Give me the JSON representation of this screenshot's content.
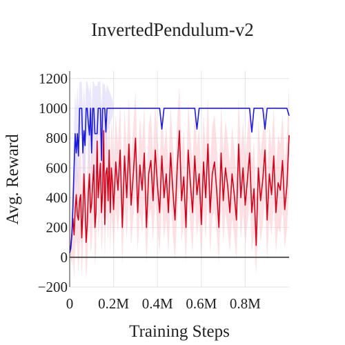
{
  "chart_data": {
    "type": "line",
    "title": "InvertedPendulum-v2",
    "xlabel": "Training Steps",
    "ylabel": "Avg. Reward",
    "xlim": [
      0,
      1000000
    ],
    "ylim": [
      -200,
      1250
    ],
    "x_ticks": [
      0,
      200000,
      400000,
      600000,
      800000
    ],
    "x_tick_labels": [
      "0",
      "0.2M",
      "0.4M",
      "0.6M",
      "0.8M"
    ],
    "y_ticks": [
      -200,
      0,
      200,
      400,
      600,
      800,
      1000,
      1200
    ],
    "y_tick_labels": [
      "−200",
      "0",
      "200",
      "400",
      "600",
      "800",
      "1000",
      "1200"
    ],
    "grid": true,
    "legend": "none",
    "series": [
      {
        "color": "#d0021b",
        "band_color": "#f9c6cc",
        "x": [
          0,
          5000,
          10000,
          15000,
          20000,
          25000,
          30000,
          35000,
          40000,
          45000,
          50000,
          55000,
          60000,
          65000,
          70000,
          75000,
          80000,
          85000,
          90000,
          95000,
          100000,
          105000,
          110000,
          115000,
          120000,
          125000,
          130000,
          135000,
          140000,
          145000,
          150000,
          155000,
          160000,
          165000,
          170000,
          175000,
          180000,
          185000,
          190000,
          195000,
          200000,
          210000,
          220000,
          230000,
          240000,
          250000,
          260000,
          270000,
          280000,
          290000,
          300000,
          310000,
          320000,
          330000,
          340000,
          350000,
          360000,
          370000,
          380000,
          390000,
          400000,
          410000,
          420000,
          430000,
          440000,
          450000,
          460000,
          470000,
          480000,
          490000,
          500000,
          510000,
          520000,
          530000,
          540000,
          550000,
          560000,
          570000,
          580000,
          590000,
          600000,
          610000,
          620000,
          630000,
          640000,
          650000,
          660000,
          670000,
          680000,
          690000,
          700000,
          710000,
          720000,
          730000,
          740000,
          750000,
          760000,
          770000,
          780000,
          790000,
          800000,
          810000,
          820000,
          830000,
          840000,
          850000,
          860000,
          870000,
          880000,
          890000,
          900000,
          910000,
          920000,
          930000,
          940000,
          950000,
          960000,
          970000,
          980000,
          990000,
          1000000
        ],
        "y": [
          30,
          80,
          160,
          260,
          150,
          320,
          420,
          280,
          250,
          380,
          420,
          130,
          300,
          560,
          350,
          100,
          220,
          430,
          560,
          300,
          360,
          500,
          620,
          200,
          300,
          780,
          400,
          520,
          630,
          300,
          450,
          850,
          220,
          560,
          600,
          380,
          720,
          300,
          600,
          500,
          320,
          640,
          450,
          720,
          200,
          680,
          400,
          760,
          350,
          560,
          800,
          300,
          620,
          450,
          700,
          200,
          560,
          650,
          380,
          720,
          480,
          300,
          680,
          400,
          560,
          300,
          700,
          450,
          250,
          600,
          850,
          380,
          540,
          200,
          720,
          500,
          300,
          680,
          420,
          560,
          220,
          640,
          400,
          760,
          300,
          560,
          640,
          450,
          200,
          700,
          380,
          600,
          480,
          300,
          560,
          420,
          250,
          760,
          400,
          600,
          350,
          520,
          700,
          300,
          460,
          80,
          600,
          380,
          520,
          720,
          250,
          560,
          420,
          680,
          300,
          500,
          450,
          650,
          320,
          480,
          820
        ],
        "band_low": [
          0,
          0,
          -60,
          20,
          -150,
          50,
          130,
          40,
          -100,
          60,
          150,
          -150,
          40,
          250,
          100,
          -150,
          -50,
          150,
          250,
          30,
          80,
          200,
          320,
          -60,
          30,
          450,
          120,
          220,
          300,
          30,
          160,
          480,
          -20,
          250,
          300,
          100,
          400,
          30,
          280,
          200,
          60,
          320,
          160,
          400,
          -50,
          360,
          120,
          420,
          80,
          260,
          450,
          40,
          300,
          160,
          380,
          -40,
          260,
          330,
          100,
          400,
          180,
          30,
          360,
          120,
          260,
          30,
          380,
          150,
          -20,
          300,
          480,
          100,
          240,
          -40,
          400,
          200,
          30,
          360,
          140,
          260,
          -20,
          320,
          120,
          420,
          30,
          260,
          320,
          160,
          -40,
          380,
          100,
          300,
          180,
          30,
          260,
          140,
          -20,
          420,
          120,
          300,
          80,
          220,
          380,
          30,
          160,
          -120,
          300,
          100,
          220,
          400,
          -20,
          260,
          140,
          360,
          30,
          200,
          160,
          330,
          60,
          180,
          480
        ],
        "band_high": [
          60,
          200,
          420,
          560,
          480,
          620,
          750,
          600,
          560,
          700,
          750,
          450,
          620,
          880,
          680,
          420,
          540,
          760,
          880,
          620,
          700,
          820,
          950,
          520,
          640,
          1100,
          720,
          840,
          950,
          620,
          780,
          1150,
          540,
          880,
          920,
          700,
          1050,
          620,
          920,
          820,
          620,
          960,
          760,
          1040,
          520,
          1000,
          720,
          1080,
          660,
          880,
          1120,
          620,
          940,
          760,
          1020,
          500,
          880,
          970,
          700,
          1040,
          800,
          620,
          1000,
          720,
          880,
          620,
          1020,
          760,
          560,
          920,
          1150,
          700,
          860,
          520,
          1040,
          820,
          620,
          1000,
          740,
          880,
          540,
          960,
          720,
          1080,
          620,
          880,
          960,
          760,
          520,
          1020,
          700,
          920,
          800,
          620,
          880,
          740,
          560,
          1080,
          720,
          920,
          660,
          840,
          1020,
          620,
          780,
          400,
          920,
          700,
          840,
          1040,
          560,
          880,
          740,
          1000,
          620,
          820,
          760,
          970,
          640,
          800,
          1150
        ]
      },
      {
        "color": "#1a1adb",
        "band_color": "#d9d4fb",
        "x": [
          0,
          5000,
          10000,
          15000,
          20000,
          25000,
          30000,
          35000,
          40000,
          45000,
          50000,
          55000,
          60000,
          65000,
          70000,
          75000,
          80000,
          85000,
          90000,
          95000,
          100000,
          105000,
          110000,
          115000,
          120000,
          125000,
          130000,
          135000,
          140000,
          145000,
          150000,
          155000,
          160000,
          165000,
          170000,
          175000,
          180000,
          185000,
          190000,
          195000,
          200000,
          210000,
          220000,
          230000,
          240000,
          250000,
          260000,
          270000,
          280000,
          290000,
          300000,
          310000,
          320000,
          330000,
          340000,
          350000,
          360000,
          370000,
          380000,
          390000,
          400000,
          410000,
          420000,
          430000,
          440000,
          450000,
          460000,
          470000,
          480000,
          490000,
          500000,
          510000,
          520000,
          530000,
          540000,
          550000,
          560000,
          570000,
          580000,
          590000,
          600000,
          610000,
          620000,
          630000,
          640000,
          650000,
          660000,
          670000,
          680000,
          690000,
          700000,
          710000,
          720000,
          730000,
          740000,
          750000,
          760000,
          770000,
          780000,
          790000,
          800000,
          810000,
          820000,
          830000,
          840000,
          850000,
          860000,
          870000,
          880000,
          890000,
          900000,
          910000,
          920000,
          930000,
          940000,
          950000,
          960000,
          970000,
          980000,
          990000,
          1000000
        ],
        "y": [
          30,
          60,
          150,
          350,
          600,
          830,
          700,
          830,
          680,
          1000,
          1000,
          1000,
          700,
          850,
          750,
          1000,
          1000,
          900,
          820,
          1000,
          700,
          1000,
          1000,
          830,
          830,
          830,
          1000,
          1000,
          1000,
          650,
          1000,
          1000,
          1000,
          840,
          1000,
          1000,
          1000,
          1000,
          1000,
          1000,
          1000,
          1000,
          1000,
          1000,
          1000,
          1000,
          1000,
          1000,
          1000,
          1000,
          1000,
          1000,
          1000,
          1000,
          1000,
          1000,
          1000,
          1000,
          1000,
          1000,
          1000,
          1000,
          860,
          1000,
          1000,
          1000,
          1000,
          1000,
          1000,
          1000,
          1000,
          1000,
          1000,
          1000,
          1000,
          1000,
          1000,
          1000,
          860,
          1000,
          1000,
          1000,
          1000,
          1000,
          1000,
          1000,
          1000,
          1000,
          1000,
          1000,
          1000,
          1000,
          1000,
          1000,
          1000,
          1000,
          1000,
          1000,
          1000,
          1000,
          1000,
          1000,
          1000,
          840,
          1000,
          1000,
          1000,
          1000,
          1000,
          860,
          1000,
          1000,
          1000,
          1000,
          1000,
          1000,
          1000,
          1000,
          1000,
          1000,
          950
        ],
        "band_low": [
          0,
          20,
          60,
          200,
          350,
          550,
          450,
          550,
          400,
          800,
          820,
          820,
          450,
          600,
          500,
          800,
          820,
          650,
          560,
          820,
          450,
          820,
          820,
          560,
          560,
          560,
          820,
          820,
          820,
          400,
          820,
          840,
          840,
          600,
          840,
          860,
          880,
          900,
          920,
          940,
          1000,
          1000,
          1000,
          1000,
          1000,
          1000,
          1000,
          1000,
          1000,
          1000,
          1000,
          1000,
          1000,
          1000,
          1000,
          1000,
          1000,
          1000,
          1000,
          1000,
          1000,
          1000,
          860,
          1000,
          1000,
          1000,
          1000,
          1000,
          1000,
          1000,
          1000,
          1000,
          1000,
          1000,
          1000,
          1000,
          1000,
          1000,
          860,
          1000,
          1000,
          1000,
          1000,
          1000,
          1000,
          1000,
          1000,
          1000,
          1000,
          1000,
          1000,
          1000,
          1000,
          1000,
          1000,
          1000,
          1000,
          1000,
          1000,
          1000,
          1000,
          1000,
          1000,
          840,
          1000,
          1000,
          1000,
          1000,
          1000,
          860,
          1000,
          1000,
          1000,
          1000,
          1000,
          1000,
          1000,
          1000,
          1000,
          1000,
          950
        ],
        "band_high": [
          60,
          120,
          260,
          520,
          900,
          1100,
          1000,
          1150,
          1000,
          1180,
          1180,
          1180,
          1000,
          1150,
          1000,
          1180,
          1180,
          1150,
          1100,
          1180,
          1000,
          1180,
          1180,
          1150,
          1150,
          1150,
          1180,
          1180,
          1180,
          1000,
          1180,
          1160,
          1160,
          1100,
          1160,
          1140,
          1120,
          1100,
          1080,
          1060,
          1000,
          1000,
          1000,
          1000,
          1000,
          1000,
          1000,
          1000,
          1000,
          1000,
          1000,
          1000,
          1000,
          1000,
          1000,
          1000,
          1000,
          1000,
          1000,
          1000,
          1000,
          1000,
          860,
          1000,
          1000,
          1000,
          1000,
          1000,
          1000,
          1000,
          1000,
          1000,
          1000,
          1000,
          1000,
          1000,
          1000,
          1000,
          860,
          1000,
          1000,
          1000,
          1000,
          1000,
          1000,
          1000,
          1000,
          1000,
          1000,
          1000,
          1000,
          1000,
          1000,
          1000,
          1000,
          1000,
          1000,
          1000,
          1000,
          1000,
          1000,
          1000,
          1000,
          840,
          1000,
          1000,
          1000,
          1000,
          1000,
          860,
          1000,
          1000,
          1000,
          1000,
          1000,
          1000,
          1000,
          1000,
          1000,
          1000,
          950
        ]
      }
    ]
  }
}
